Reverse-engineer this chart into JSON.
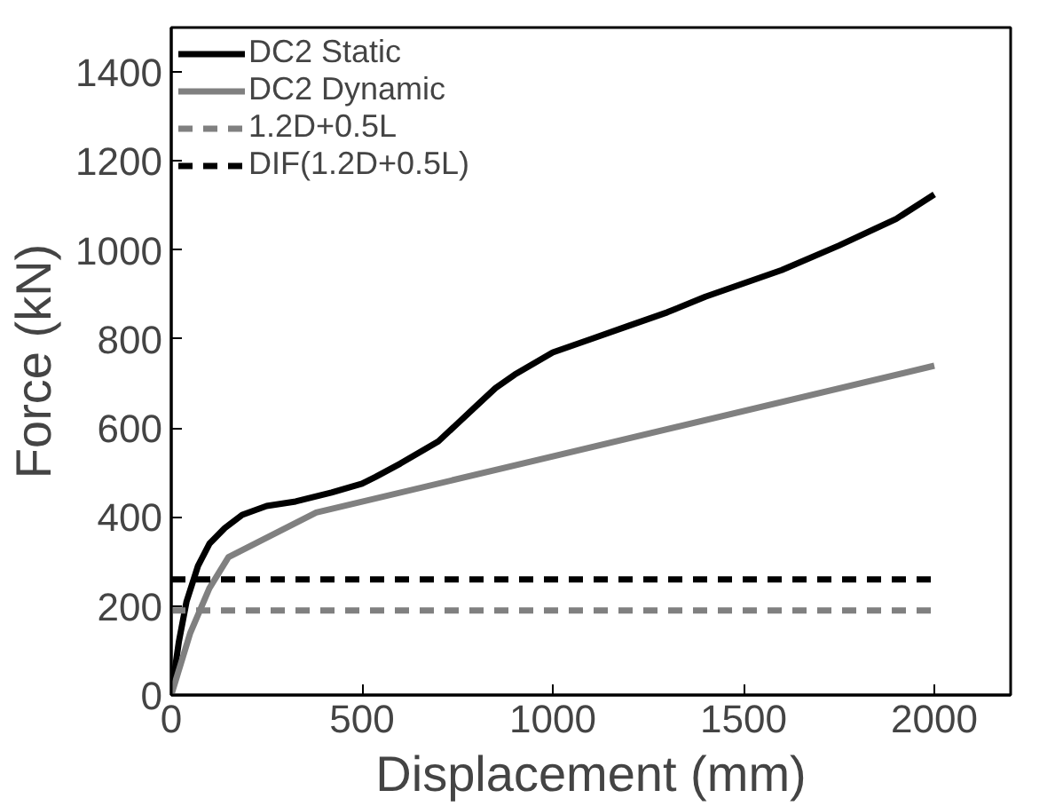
{
  "chart_data": {
    "type": "line",
    "xlabel": "Displacement (mm)",
    "ylabel": "Force (kN)",
    "xlim": [
      0,
      2200
    ],
    "ylim": [
      0,
      1500
    ],
    "xticks": [
      0,
      500,
      1000,
      1500,
      2000
    ],
    "yticks": [
      0,
      200,
      400,
      600,
      800,
      1000,
      1200,
      1400
    ],
    "grid": false,
    "legend": "top left",
    "marker": "none",
    "series": [
      {
        "name": "DC2 Static",
        "color": "#000000",
        "line_style": "solid",
        "x": [
          0,
          20,
          40,
          70,
          100,
          140,
          186,
          250,
          326,
          420,
          500,
          535,
          600,
          700,
          750,
          800,
          850,
          900,
          1000,
          1050,
          1100,
          1200,
          1300,
          1400,
          1500,
          1600,
          1750,
          1900,
          2000
        ],
        "values": [
          0,
          120,
          210,
          290,
          340,
          375,
          405,
          425,
          435,
          455,
          475,
          490,
          520,
          570,
          610,
          650,
          690,
          720,
          770,
          785,
          800,
          830,
          860,
          895,
          925,
          955,
          1010,
          1070,
          1125
        ]
      },
      {
        "name": "DC2 Dynamic",
        "color": "#808080",
        "line_style": "solid",
        "x": [
          0,
          50,
          100,
          150,
          380,
          2000
        ],
        "values": [
          0,
          140,
          240,
          310,
          410,
          740
        ]
      },
      {
        "name": "1.2D+0.5L",
        "color": "#808080",
        "line_style": "dashed",
        "x": [
          0,
          2000
        ],
        "values": [
          190,
          190
        ]
      },
      {
        "name": "DIF(1.2D+0.5L)",
        "color": "#000000",
        "line_style": "dashed",
        "x": [
          0,
          2000
        ],
        "values": [
          260,
          260
        ]
      }
    ]
  }
}
